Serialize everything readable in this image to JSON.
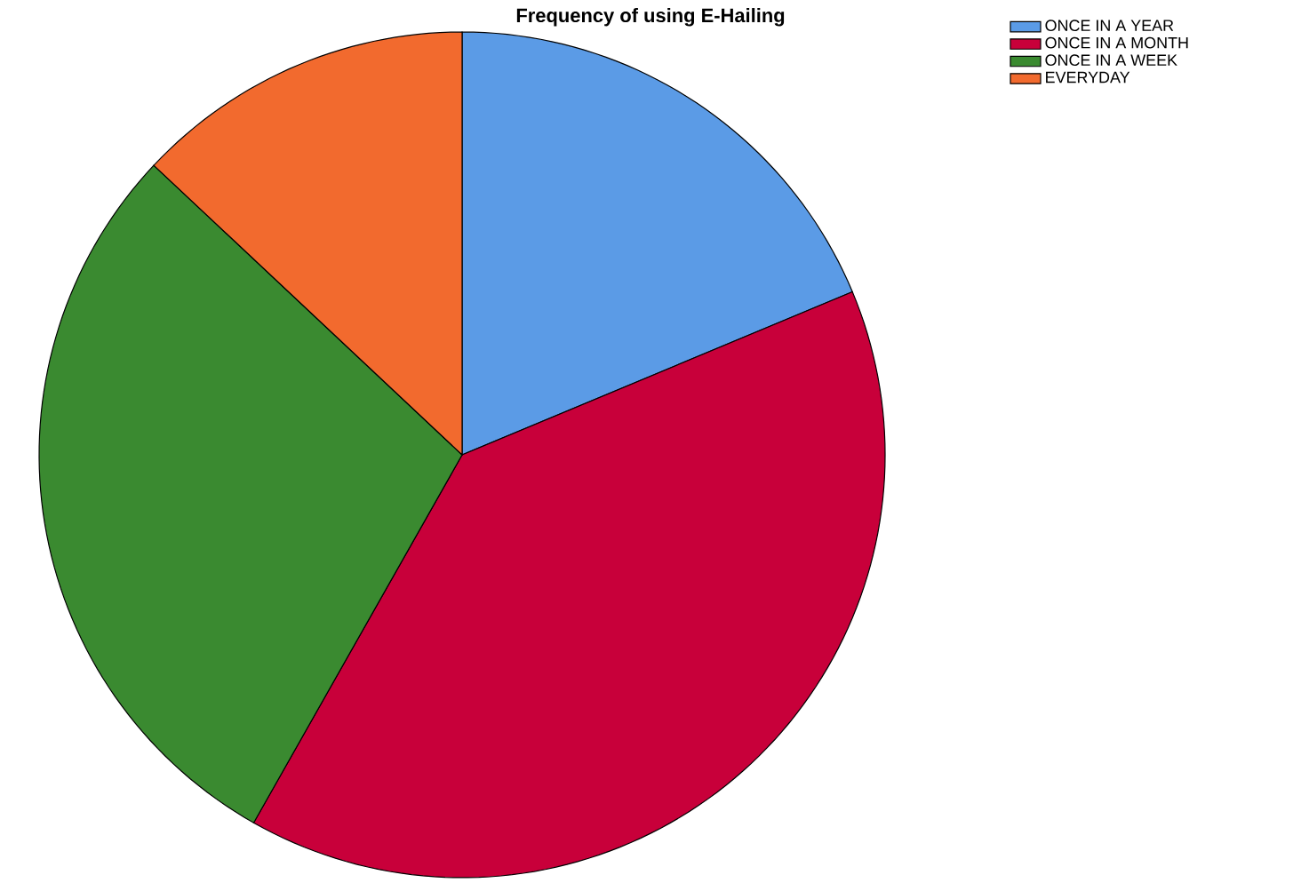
{
  "chart_data": {
    "type": "pie",
    "title": "Frequency of using E-Hailing",
    "categories": [
      "ONCE IN A YEAR",
      "ONCE IN A MONTH",
      "ONCE IN A WEEK",
      "EVERYDAY"
    ],
    "values": [
      18.7,
      39.5,
      28.8,
      13.0
    ],
    "colors": [
      "#5b9be6",
      "#c8003a",
      "#3a8a30",
      "#f26a2e"
    ],
    "legend": "top right"
  }
}
